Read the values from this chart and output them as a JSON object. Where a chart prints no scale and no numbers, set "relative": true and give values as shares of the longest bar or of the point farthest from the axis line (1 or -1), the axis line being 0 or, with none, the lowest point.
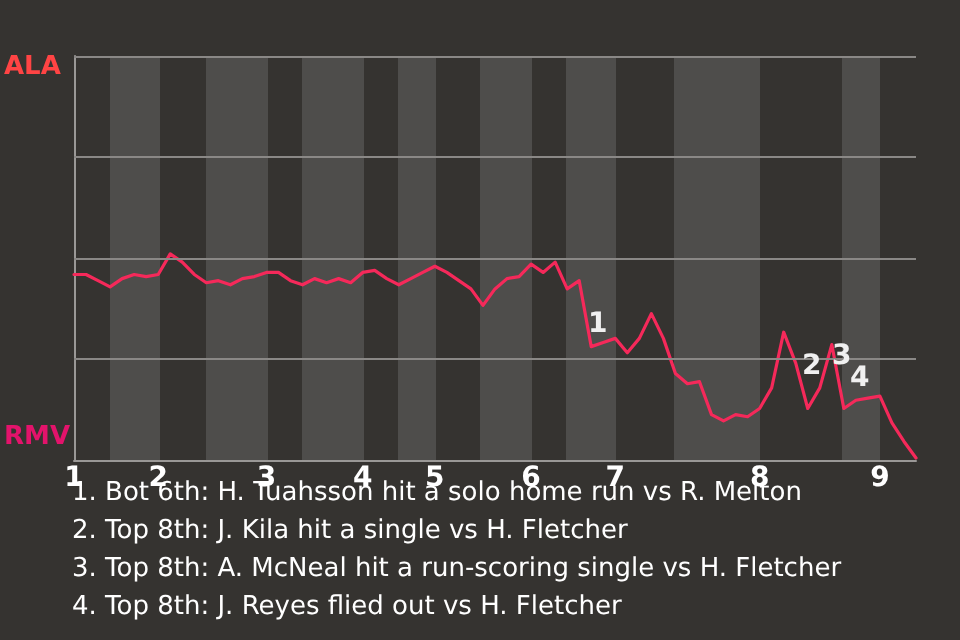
{
  "chart_data": {
    "type": "line",
    "relative": true,
    "categories": [
      "1",
      null,
      null,
      null,
      null,
      null,
      null,
      "2",
      null,
      null,
      null,
      null,
      null,
      null,
      null,
      null,
      "3",
      null,
      null,
      null,
      null,
      null,
      null,
      null,
      "4",
      null,
      null,
      null,
      null,
      null,
      "5",
      null,
      null,
      null,
      null,
      null,
      null,
      null,
      "6",
      null,
      null,
      null,
      null,
      null,
      null,
      "7",
      null,
      null,
      null,
      null,
      null,
      null,
      null,
      null,
      null,
      null,
      null,
      "8",
      null,
      null,
      null,
      null,
      null,
      null,
      null,
      null,
      null,
      "9",
      null,
      null,
      null
    ],
    "series": [
      {
        "color": "#f5295a",
        "values": [
          0.9,
          0.9,
          0.87,
          0.84,
          0.88,
          0.9,
          0.89,
          0.9,
          1,
          0.96,
          0.9,
          0.86,
          0.87,
          0.85,
          0.88,
          0.89,
          0.91,
          0.91,
          0.87,
          0.85,
          0.88,
          0.86,
          0.88,
          0.86,
          0.91,
          0.92,
          0.88,
          0.85,
          0.88,
          0.91,
          0.94,
          0.91,
          0.87,
          0.83,
          0.75,
          0.83,
          0.88,
          0.89,
          0.95,
          0.91,
          0.96,
          0.83,
          0.87,
          0.55,
          0.57,
          0.59,
          0.52,
          0.59,
          0.71,
          0.59,
          0.42,
          0.37,
          0.38,
          0.22,
          0.19,
          0.22,
          0.21,
          0.25,
          0.35,
          0.62,
          0.47,
          0.25,
          0.35,
          0.56,
          0.25,
          0.29,
          0.3,
          0.31,
          0.18,
          0.09,
          0.01
        ]
      }
    ],
    "ref_lines": [
      {
        "axis": "y",
        "value": 0.49,
        "color": "#8a8886"
      },
      {
        "axis": "y",
        "value": 0.98,
        "color": "#8a8886"
      },
      {
        "axis": "y",
        "value": 1.47,
        "color": "#8a8886"
      },
      {
        "axis": "y",
        "value": 1.96,
        "color": "#8a8886"
      }
    ],
    "annotations": [
      "ALA",
      "RMV",
      "1",
      "2",
      "3",
      "4",
      "1. Bot 6th: H. Tuahsson hit a solo home run vs R. Melton",
      "2. Top 8th: J. Kila hit a single vs H. Fletcher",
      "3. Top 8th: A. McNeal hit a run-scoring single vs H. Fletcher",
      "4. Top 8th: J. Reyes flied out vs H. Fletcher"
    ]
  }
}
